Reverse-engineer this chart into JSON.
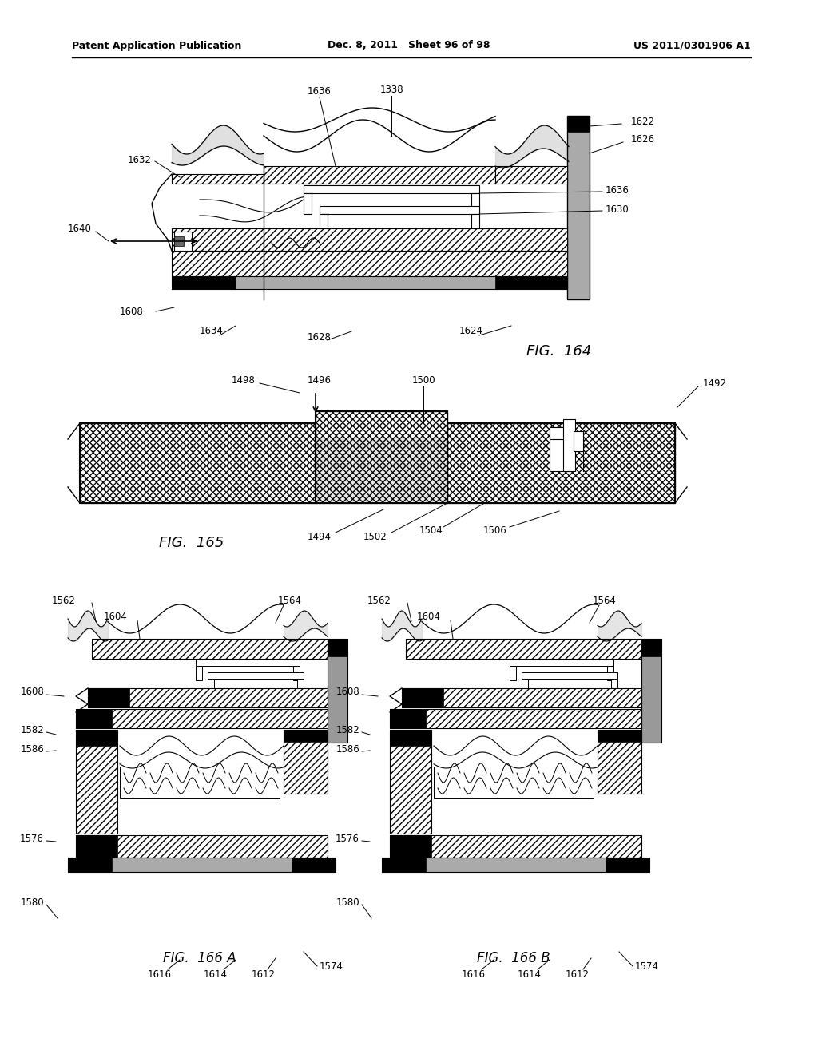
{
  "background_color": "#ffffff",
  "header": {
    "left": "Patent Application Publication",
    "center": "Dec. 8, 2011   Sheet 96 of 98",
    "right": "US 2011/0301906 A1"
  },
  "page_width": 1.0,
  "page_height": 1.0
}
